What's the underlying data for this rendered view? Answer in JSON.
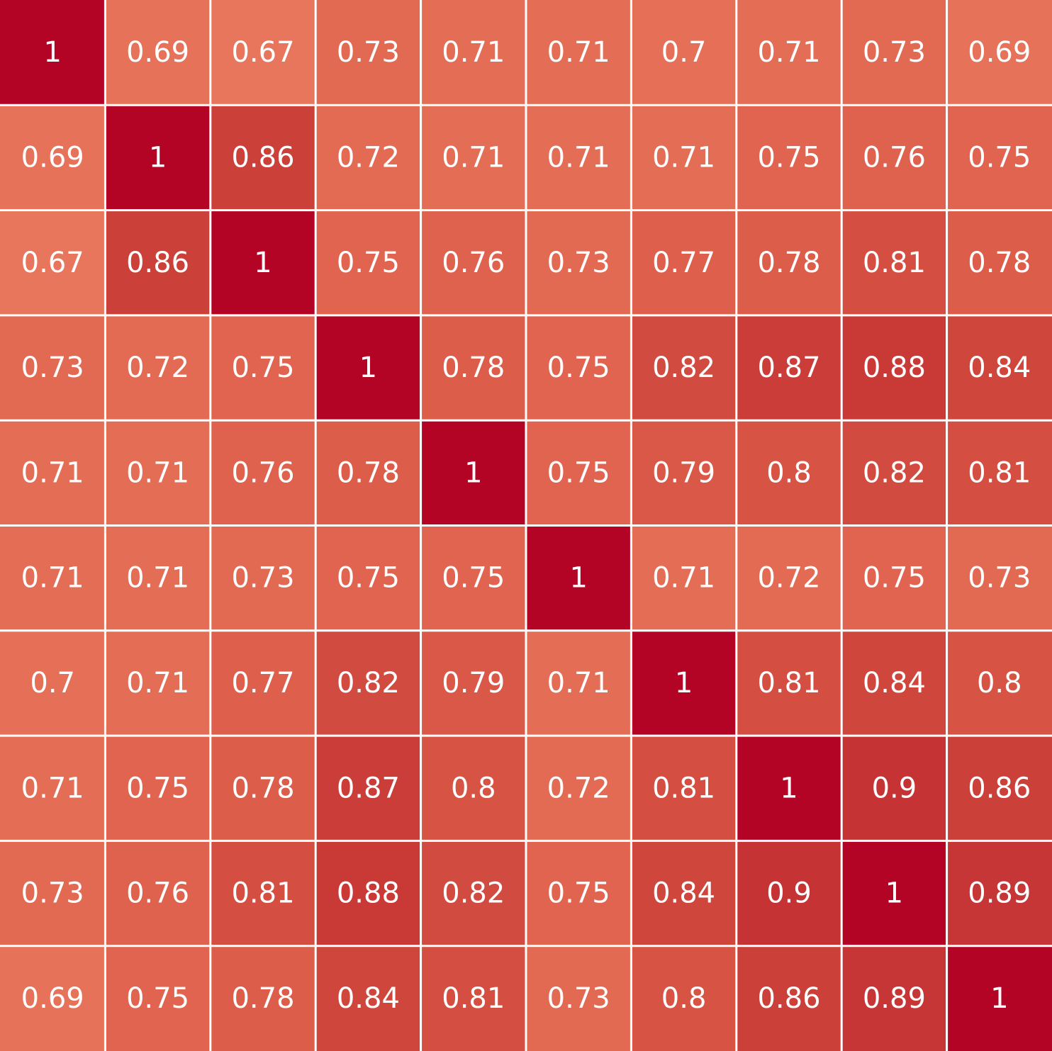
{
  "chart_data": {
    "type": "heatmap",
    "title": "",
    "xlabel": "",
    "ylabel": "",
    "colormap": "coolwarm",
    "color_anchors": [
      {
        "value": 0.67,
        "color": "#e8765c"
      },
      {
        "value": 0.73,
        "color": "#e26952"
      },
      {
        "value": 0.78,
        "color": "#dc5d4a"
      },
      {
        "value": 0.82,
        "color": "#d24b40"
      },
      {
        "value": 0.86,
        "color": "#cc403a"
      },
      {
        "value": 0.9,
        "color": "#c53334"
      },
      {
        "value": 1.0,
        "color": "#b40426"
      }
    ],
    "grid_line_color": "#ffffff",
    "annotation_color": "#ffffff",
    "values": [
      [
        1,
        0.69,
        0.67,
        0.73,
        0.71,
        0.71,
        0.7,
        0.71,
        0.73,
        0.69
      ],
      [
        0.69,
        1,
        0.86,
        0.72,
        0.71,
        0.71,
        0.71,
        0.75,
        0.76,
        0.75
      ],
      [
        0.67,
        0.86,
        1,
        0.75,
        0.76,
        0.73,
        0.77,
        0.78,
        0.81,
        0.78
      ],
      [
        0.73,
        0.72,
        0.75,
        1,
        0.78,
        0.75,
        0.82,
        0.87,
        0.88,
        0.84
      ],
      [
        0.71,
        0.71,
        0.76,
        0.78,
        1,
        0.75,
        0.79,
        0.8,
        0.82,
        0.81
      ],
      [
        0.71,
        0.71,
        0.73,
        0.75,
        0.75,
        1,
        0.71,
        0.72,
        0.75,
        0.73
      ],
      [
        0.7,
        0.71,
        0.77,
        0.82,
        0.79,
        0.71,
        1,
        0.81,
        0.84,
        0.8
      ],
      [
        0.71,
        0.75,
        0.78,
        0.87,
        0.8,
        0.72,
        0.81,
        1,
        0.9,
        0.86
      ],
      [
        0.73,
        0.76,
        0.81,
        0.88,
        0.82,
        0.75,
        0.84,
        0.9,
        1,
        0.89
      ],
      [
        0.69,
        0.75,
        0.78,
        0.84,
        0.81,
        0.73,
        0.8,
        0.86,
        0.89,
        1
      ]
    ]
  }
}
